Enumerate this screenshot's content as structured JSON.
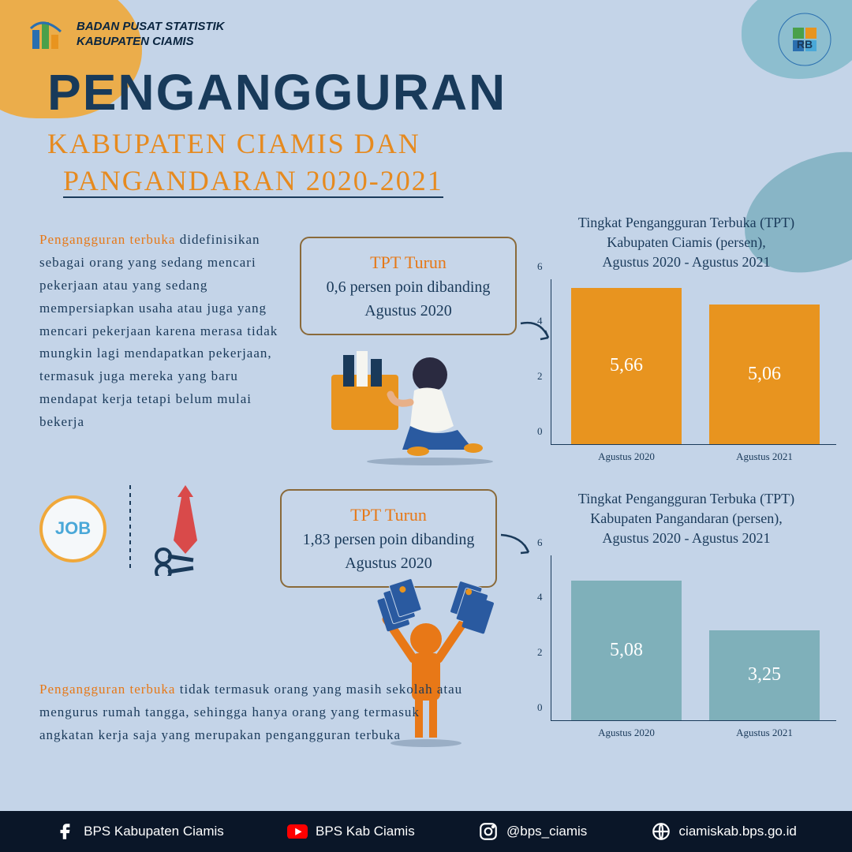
{
  "header": {
    "org_line1": "BADAN PUSAT STATISTIK",
    "org_line2": "KABUPATEN CIAMIS"
  },
  "title": {
    "main": "PENGANGGURAN",
    "sub_line1": "KABUPATEN CIAMIS DAN",
    "sub_line2": "PANGANDARAN 2020-2021"
  },
  "paragraph1": {
    "lead": "Pengangguran terbuka",
    "body": " didefinisikan sebagai orang yang sedang mencari pekerjaan atau yang sedang mempersiapkan usaha atau juga yang mencari pekerjaan karena merasa tidak mungkin  lagi mendapatkan pekerjaan, termasuk juga mereka yang baru mendapat kerja tetapi belum mulai bekerja"
  },
  "paragraph2": {
    "lead": "Pengangguran terbuka",
    "body": " tidak termasuk orang yang masih sekolah atau mengurus rumah tangga, sehingga hanya orang yang termasuk angkatan kerja saja  yang merupakan pengangguran terbuka"
  },
  "callout1": {
    "title": "TPT Turun",
    "body": "0,6 persen poin dibanding Agustus 2020"
  },
  "callout2": {
    "title": "TPT Turun",
    "body": "1,83 persen poin dibanding Agustus 2020"
  },
  "job_badge_text": "JOB",
  "chart1": {
    "type": "bar",
    "title_l1": "Tingkat Pengangguran Terbuka (TPT)",
    "title_l2": "Kabupaten Ciamis (persen),",
    "title_l3": "Agustus 2020 - Agustus 2021",
    "categories": [
      "Agustus 2020",
      "Agustus 2021"
    ],
    "values": [
      5.66,
      5.06
    ],
    "value_labels": [
      "5,66",
      "5,06"
    ],
    "bar_color": "#e8941f",
    "ylim": [
      0,
      6
    ],
    "ytick_step": 2,
    "yticks": [
      "0",
      "2",
      "4",
      "6"
    ]
  },
  "chart2": {
    "type": "bar",
    "title_l1": "Tingkat Pengangguran Terbuka (TPT)",
    "title_l2": "Kabupaten Pangandaran (persen),",
    "title_l3": "Agustus 2020 - Agustus 2021",
    "categories": [
      "Agustus 2020",
      "Agustus 2021"
    ],
    "values": [
      5.08,
      3.25
    ],
    "value_labels": [
      "5,08",
      "3,25"
    ],
    "bar_color": "#7fb0ba",
    "ylim": [
      0,
      6
    ],
    "ytick_step": 2,
    "yticks": [
      "0",
      "2",
      "4",
      "6"
    ]
  },
  "footer": {
    "facebook": "BPS Kabupaten Ciamis",
    "youtube": "BPS Kab Ciamis",
    "instagram": "@bps_ciamis",
    "website": "ciamiskab.bps.go.id"
  },
  "colors": {
    "bg": "#c4d4e8",
    "dark_navy": "#183a5a",
    "orange": "#e68a1f",
    "footer_bg": "#0a1628"
  }
}
